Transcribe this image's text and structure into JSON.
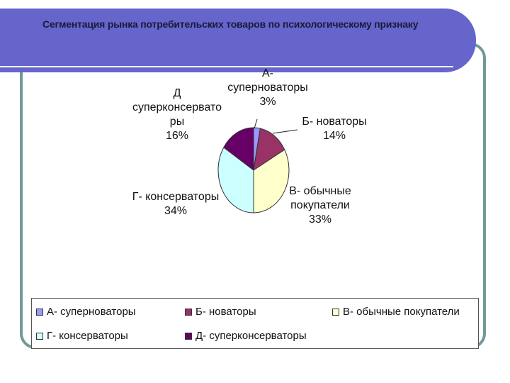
{
  "title": "Сегментация рынка потребительских товаров по психологическому признаку",
  "chart_data": {
    "type": "pie",
    "categories": [
      "А- суперноваторы",
      "Б- новаторы",
      "В- обычные покупатели",
      "Г- консерваторы",
      "Д- суперконсерваторы"
    ],
    "values": [
      3,
      14,
      33,
      34,
      16
    ],
    "colors": [
      "#9999ff",
      "#993366",
      "#ffffcc",
      "#ccffff",
      "#660066"
    ],
    "legend_position": "bottom"
  },
  "labels": {
    "a": [
      "А-",
      "суперноваторы",
      "3%"
    ],
    "b": [
      "Б- новаторы",
      "14%"
    ],
    "v": [
      "В- обычные",
      "покупатели",
      "33%"
    ],
    "g": [
      "Г- консерваторы",
      "34%"
    ],
    "d": [
      "Д",
      "суперконсервато",
      "ры",
      "16%"
    ]
  },
  "legend": {
    "items": [
      "А- суперноваторы",
      "Б- новаторы",
      "В- обычные покупатели",
      "Г- консерваторы",
      "Д- суперконсерваторы"
    ]
  }
}
